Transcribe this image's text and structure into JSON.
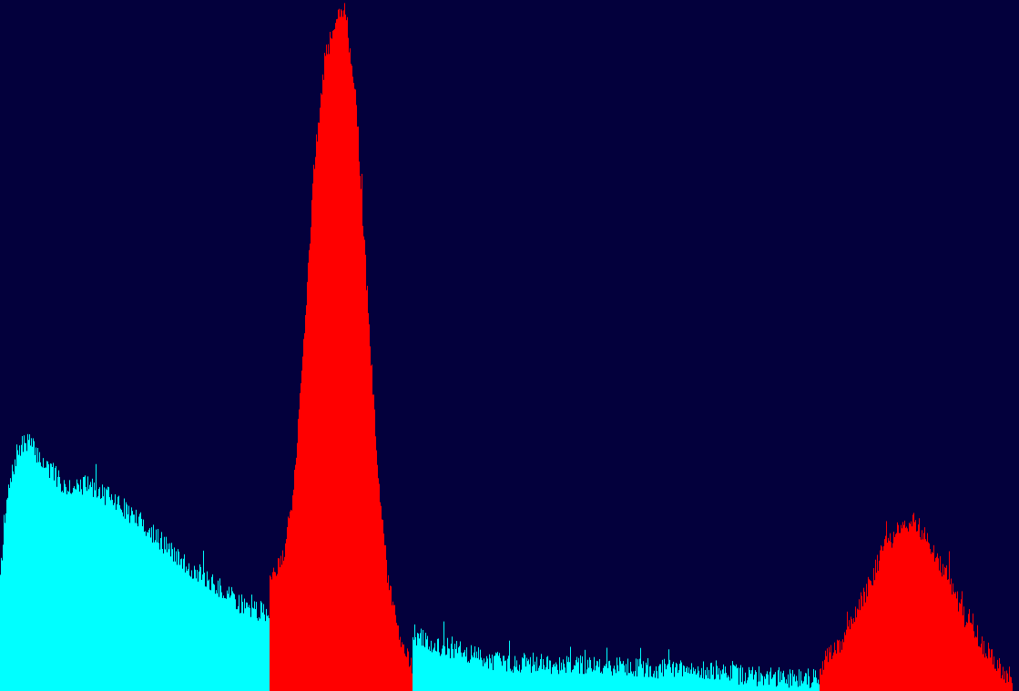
{
  "chart_data": {
    "type": "bar",
    "x_range": [
      0,
      1119
    ],
    "y_range": [
      0,
      1
    ],
    "grid": false,
    "legend": "none",
    "colors": {
      "background": "#03003c",
      "default_series": "#00ffff",
      "highlight_series": "#ff0000"
    },
    "series": [
      {
        "color": "#00ffff",
        "segments": [
          {
            "x_start": 0,
            "x_end": 296,
            "profile": [
              [
                0,
                0.176
              ],
              [
                8,
                0.282
              ],
              [
                18,
                0.344
              ],
              [
                30,
                0.364
              ],
              [
                45,
                0.334
              ],
              [
                70,
                0.298
              ],
              [
                100,
                0.297
              ],
              [
                130,
                0.271
              ],
              [
                160,
                0.238
              ],
              [
                200,
                0.186
              ],
              [
                240,
                0.149
              ],
              [
                270,
                0.121
              ],
              [
                296,
                0.112
              ]
            ]
          },
          {
            "x_start": 453,
            "x_end": 900,
            "profile": [
              [
                453,
                0.084
              ],
              [
                470,
                0.069
              ],
              [
                500,
                0.059
              ],
              [
                550,
                0.042
              ],
              [
                600,
                0.04
              ],
              [
                650,
                0.037
              ],
              [
                700,
                0.034
              ],
              [
                750,
                0.031
              ],
              [
                800,
                0.025
              ],
              [
                850,
                0.02
              ],
              [
                900,
                0.019
              ]
            ]
          }
        ]
      },
      {
        "color": "#ff0000",
        "segments": [
          {
            "x_start": 296,
            "x_end": 453,
            "profile": [
              [
                296,
                0.17
              ],
              [
                310,
                0.19
              ],
              [
                322,
                0.291
              ],
              [
                333,
                0.503
              ],
              [
                344,
                0.751
              ],
              [
                356,
                0.91
              ],
              [
                368,
                0.974
              ],
              [
                378,
                0.982
              ],
              [
                390,
                0.872
              ],
              [
                402,
                0.595
              ],
              [
                414,
                0.332
              ],
              [
                426,
                0.155
              ],
              [
                438,
                0.085
              ],
              [
                453,
                0.031
              ]
            ]
          },
          {
            "x_start": 900,
            "x_end": 1112,
            "profile": [
              [
                900,
                0.035
              ],
              [
                925,
                0.072
              ],
              [
                950,
                0.142
              ],
              [
                970,
                0.206
              ],
              [
                985,
                0.232
              ],
              [
                1005,
                0.246
              ],
              [
                1025,
                0.204
              ],
              [
                1045,
                0.151
              ],
              [
                1065,
                0.087
              ],
              [
                1085,
                0.057
              ],
              [
                1100,
                0.029
              ],
              [
                1112,
                0.019
              ]
            ]
          }
        ]
      }
    ],
    "noise_seed": 7
  }
}
